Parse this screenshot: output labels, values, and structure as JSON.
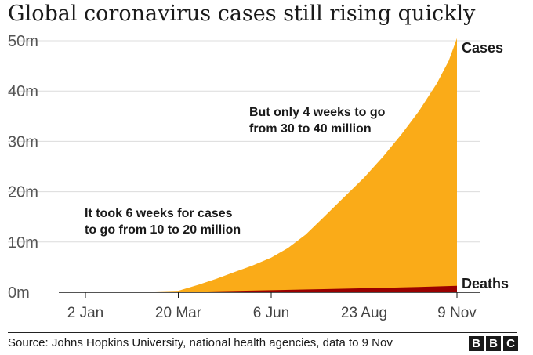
{
  "chart_data": {
    "type": "area",
    "title": "Global coronavirus cases still rising quickly",
    "xlabel": "",
    "ylabel": "",
    "ylim": [
      0,
      50
    ],
    "y_ticks": [
      0,
      10,
      20,
      30,
      40,
      50
    ],
    "y_tick_labels": [
      "0m",
      "10m",
      "20m",
      "30m",
      "40m",
      "50m"
    ],
    "x_tick_days": [
      0,
      78,
      156,
      234,
      312
    ],
    "x_tick_labels": [
      "2 Jan",
      "20 Mar",
      "6 Jun",
      "23 Aug",
      "9 Nov"
    ],
    "x_range_days": [
      0,
      312
    ],
    "series": [
      {
        "name": "Cases",
        "color": "#FAAB18",
        "days": [
          0,
          50,
          78,
          95,
          110,
          125,
          140,
          156,
          170,
          185,
          200,
          215,
          234,
          250,
          265,
          280,
          295,
          305,
          312
        ],
        "values": [
          0,
          0.1,
          0.3,
          1.5,
          2.7,
          4.0,
          5.3,
          6.9,
          8.8,
          11.5,
          14.9,
          18.4,
          22.8,
          27.0,
          31.3,
          36.0,
          41.5,
          46.0,
          50.5
        ]
      },
      {
        "name": "Deaths",
        "color": "#990000",
        "days": [
          0,
          78,
          110,
          156,
          200,
          234,
          280,
          312
        ],
        "values": [
          0,
          0.02,
          0.2,
          0.4,
          0.62,
          0.8,
          1.05,
          1.27
        ]
      }
    ],
    "annotations": [
      {
        "text": "It took 6 weeks for cases",
        "line": 1,
        "block": "first"
      },
      {
        "text": "to go from 10 to 20 million",
        "line": 2,
        "block": "first"
      },
      {
        "text": "But only 4 weeks to go",
        "line": 1,
        "block": "second"
      },
      {
        "text": "from 30 to 40 million",
        "line": 2,
        "block": "second"
      }
    ]
  },
  "footer": {
    "source": "Source: Johns Hopkins University, national health agencies, data to 9 Nov",
    "logo_letters": [
      "B",
      "B",
      "C"
    ]
  }
}
